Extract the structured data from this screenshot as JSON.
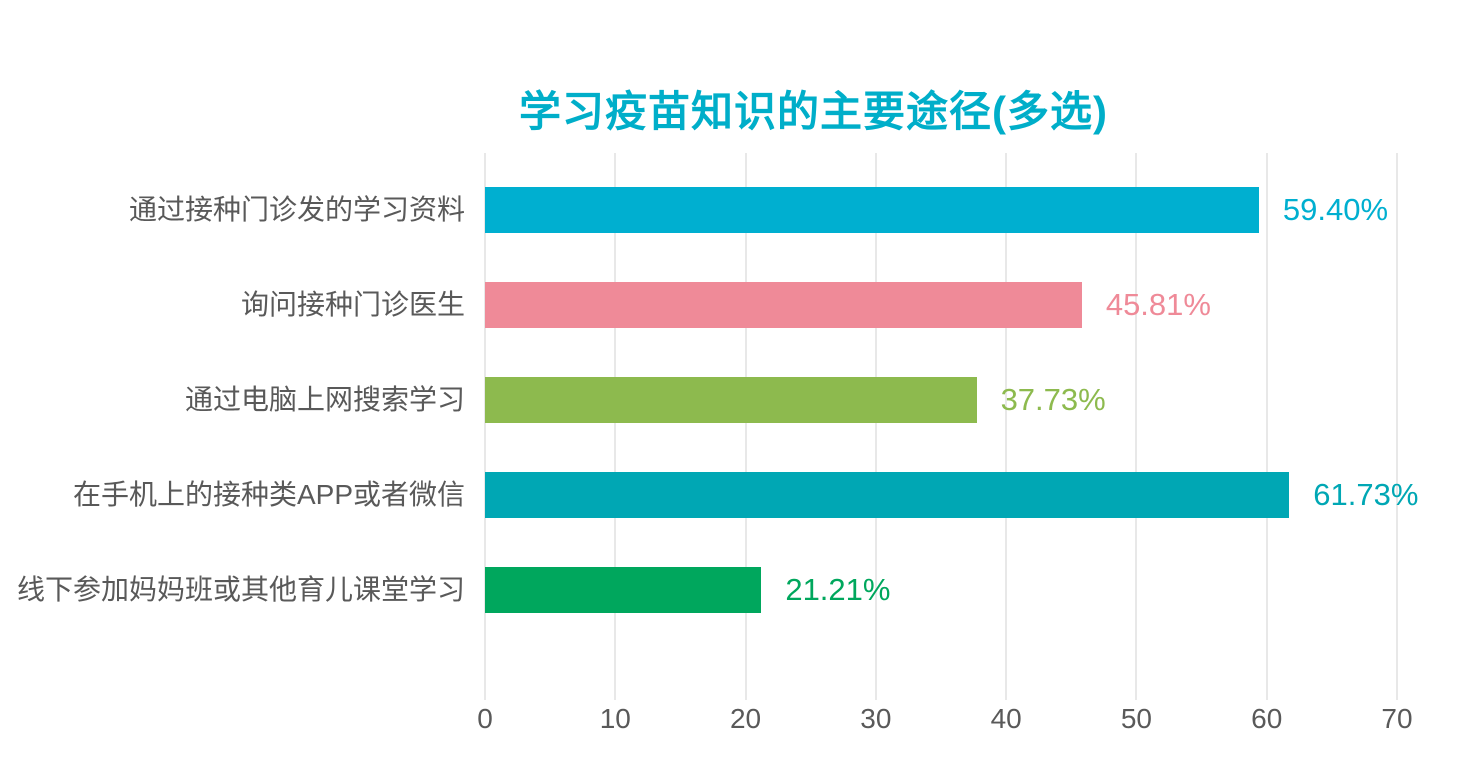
{
  "title": "学习疫苗知识的主要途径(多选)",
  "chart_data": {
    "type": "bar",
    "orientation": "horizontal",
    "title": "学习疫苗知识的主要途径(多选)",
    "categories": [
      "通过接种门诊发的学习资料",
      "询问接种门诊医生",
      "通过电脑上网搜索学习",
      "在手机上的接种类APP或者微信",
      "线下参加妈妈班或其他育儿课堂学习"
    ],
    "values": [
      59.4,
      45.81,
      37.73,
      61.73,
      21.21
    ],
    "value_labels": [
      "59.40%",
      "45.81%",
      "37.73%",
      "61.73%",
      "21.21%"
    ],
    "bar_colors": [
      "#00afd0",
      "#ef8a98",
      "#8dba4e",
      "#00a7b4",
      "#00a75d"
    ],
    "x_ticks": [
      0,
      10,
      20,
      30,
      40,
      50,
      60,
      70
    ],
    "x_tick_labels": [
      "0",
      "10",
      "20",
      "30",
      "40",
      "50",
      "60",
      "70"
    ],
    "xlim": [
      0,
      70
    ],
    "xlabel": "",
    "ylabel": "",
    "grid": "vertical",
    "legend": "none",
    "background_color": "#ffffff",
    "title_color": "#00aec9",
    "axis_text_color": "#595959",
    "gridline_color": "#e8e8e8"
  }
}
